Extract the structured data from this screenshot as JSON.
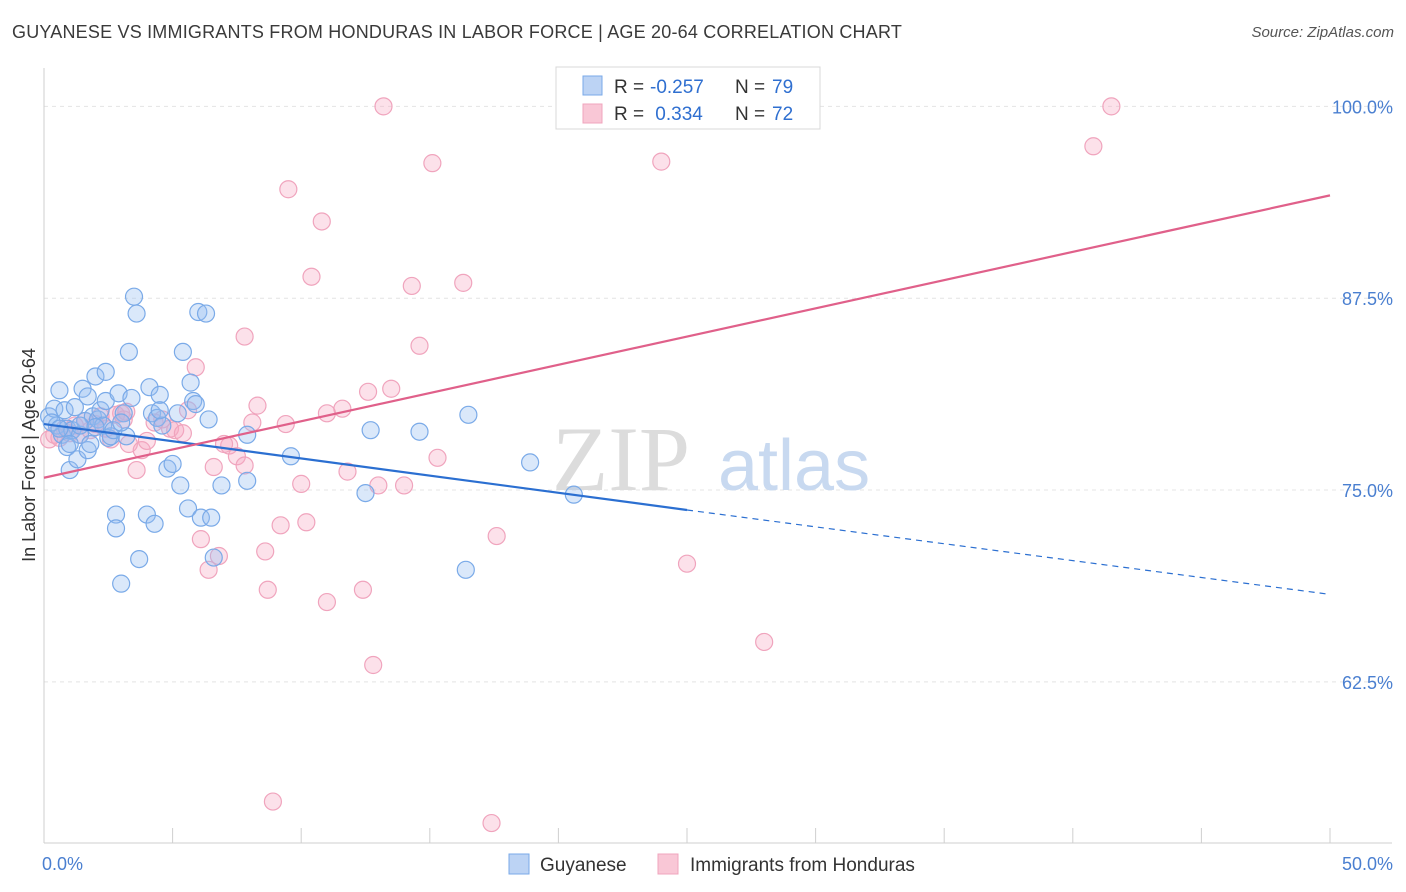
{
  "title": "GUYANESE VS IMMIGRANTS FROM HONDURAS IN LABOR FORCE | AGE 20-64 CORRELATION CHART",
  "source": "Source: ZipAtlas.com",
  "watermark": {
    "zip": "ZIP",
    "atlas": "atlas"
  },
  "chart_data": {
    "type": "scatter",
    "ylabel": "In Labor Force | Age 20-64",
    "xlim": [
      0,
      50
    ],
    "ylim": [
      52,
      102.5
    ],
    "x_tick_labels": [
      {
        "value": 0,
        "label": "0.0%"
      },
      {
        "value": 50,
        "label": "50.0%"
      }
    ],
    "y_tick_labels": [
      {
        "value": 100,
        "label": "100.0%"
      },
      {
        "value": 87.5,
        "label": "87.5%"
      },
      {
        "value": 75,
        "label": "75.0%"
      },
      {
        "value": 62.5,
        "label": "62.5%"
      }
    ],
    "legend": {
      "placement": "top-center",
      "rows": [
        {
          "r_label": "R =",
          "r_value": "-0.257",
          "n_label": "N =",
          "n_value": "79"
        },
        {
          "r_label": "R =",
          "r_value": " 0.334",
          "n_label": "N =",
          "n_value": "72"
        }
      ]
    },
    "series": [
      {
        "name": "Guyanese",
        "color": "#7aaae8",
        "line_color": "#2b6fd1",
        "trend": {
          "x0": 0,
          "y0": 79.3,
          "x1": 25,
          "y1": 73.7,
          "dash_to_x": 50,
          "dash_to_y": 68.2
        },
        "points": [
          [
            0.2,
            79.8
          ],
          [
            0.4,
            80.3
          ],
          [
            0.5,
            79.2
          ],
          [
            0.6,
            81.5
          ],
          [
            0.7,
            78.6
          ],
          [
            0.8,
            80.2
          ],
          [
            0.9,
            77.8
          ],
          [
            0.9,
            79.0
          ],
          [
            1.0,
            76.3
          ],
          [
            1.1,
            78.9
          ],
          [
            1.2,
            80.4
          ],
          [
            1.3,
            77.0
          ],
          [
            1.4,
            78.6
          ],
          [
            1.5,
            81.6
          ],
          [
            1.6,
            79.5
          ],
          [
            1.7,
            81.1
          ],
          [
            1.7,
            77.6
          ],
          [
            1.8,
            78.0
          ],
          [
            1.9,
            79.8
          ],
          [
            2.0,
            82.4
          ],
          [
            2.1,
            79.6
          ],
          [
            2.2,
            80.2
          ],
          [
            2.3,
            79.2
          ],
          [
            2.4,
            82.7
          ],
          [
            2.4,
            80.8
          ],
          [
            2.5,
            78.4
          ],
          [
            2.6,
            78.5
          ],
          [
            2.7,
            78.9
          ],
          [
            2.8,
            73.4
          ],
          [
            2.8,
            72.5
          ],
          [
            2.9,
            81.3
          ],
          [
            3.0,
            68.9
          ],
          [
            3.1,
            80.0
          ],
          [
            3.2,
            78.5
          ],
          [
            3.3,
            84.0
          ],
          [
            3.4,
            81.0
          ],
          [
            3.5,
            87.6
          ],
          [
            3.6,
            86.5
          ],
          [
            3.7,
            70.5
          ],
          [
            4.0,
            73.4
          ],
          [
            4.1,
            81.7
          ],
          [
            4.2,
            80.0
          ],
          [
            4.3,
            72.8
          ],
          [
            4.4,
            79.7
          ],
          [
            4.5,
            81.2
          ],
          [
            4.6,
            79.2
          ],
          [
            4.8,
            76.4
          ],
          [
            5.0,
            76.7
          ],
          [
            5.2,
            80.0
          ],
          [
            5.3,
            75.3
          ],
          [
            5.4,
            84.0
          ],
          [
            5.6,
            73.8
          ],
          [
            5.7,
            82.0
          ],
          [
            5.8,
            80.8
          ],
          [
            6.0,
            86.6
          ],
          [
            6.1,
            73.2
          ],
          [
            6.3,
            86.5
          ],
          [
            6.4,
            79.6
          ],
          [
            6.5,
            73.2
          ],
          [
            6.6,
            70.6
          ],
          [
            6.9,
            75.3
          ],
          [
            7.9,
            75.6
          ],
          [
            7.9,
            78.6
          ],
          [
            9.6,
            77.2
          ],
          [
            12.5,
            74.8
          ],
          [
            12.7,
            78.9
          ],
          [
            14.6,
            78.8
          ],
          [
            16.4,
            69.8
          ],
          [
            16.5,
            79.9
          ],
          [
            18.9,
            76.8
          ],
          [
            20.6,
            74.7
          ],
          [
            0.3,
            79.4
          ],
          [
            0.6,
            79.0
          ],
          [
            1.0,
            78.0
          ],
          [
            1.4,
            79.2
          ],
          [
            2.0,
            79.1
          ],
          [
            3.0,
            79.4
          ],
          [
            4.5,
            80.2
          ],
          [
            5.9,
            80.6
          ]
        ]
      },
      {
        "name": "Immigrants from Honduras",
        "color": "#f0a4bd",
        "line_color": "#e0608a",
        "trend": {
          "x0": 0,
          "y0": 75.8,
          "x1": 50,
          "y1": 94.2
        },
        "points": [
          [
            0.2,
            78.3
          ],
          [
            0.4,
            78.6
          ],
          [
            0.6,
            78.4
          ],
          [
            0.8,
            79.0
          ],
          [
            1.0,
            78.7
          ],
          [
            1.2,
            79.2
          ],
          [
            1.4,
            78.6
          ],
          [
            1.6,
            79.5
          ],
          [
            1.8,
            78.9
          ],
          [
            2.0,
            79.3
          ],
          [
            2.2,
            79.8
          ],
          [
            2.4,
            79.0
          ],
          [
            2.6,
            78.3
          ],
          [
            2.8,
            79.9
          ],
          [
            3.0,
            80.0
          ],
          [
            3.1,
            79.6
          ],
          [
            3.3,
            78.0
          ],
          [
            3.6,
            76.3
          ],
          [
            3.8,
            77.6
          ],
          [
            4.0,
            78.2
          ],
          [
            4.3,
            79.4
          ],
          [
            4.6,
            79.6
          ],
          [
            4.9,
            79.0
          ],
          [
            5.1,
            78.9
          ],
          [
            5.4,
            78.7
          ],
          [
            5.6,
            80.2
          ],
          [
            5.9,
            83.0
          ],
          [
            6.1,
            71.8
          ],
          [
            6.4,
            69.8
          ],
          [
            6.6,
            76.5
          ],
          [
            6.8,
            70.7
          ],
          [
            7.2,
            77.9
          ],
          [
            7.5,
            77.2
          ],
          [
            7.8,
            76.6
          ],
          [
            7.8,
            85.0
          ],
          [
            8.1,
            79.4
          ],
          [
            8.3,
            80.5
          ],
          [
            8.6,
            71.0
          ],
          [
            8.7,
            68.5
          ],
          [
            8.9,
            54.7
          ],
          [
            9.2,
            72.7
          ],
          [
            9.4,
            79.3
          ],
          [
            9.5,
            94.6
          ],
          [
            10.0,
            75.4
          ],
          [
            10.2,
            72.9
          ],
          [
            10.4,
            88.9
          ],
          [
            10.8,
            92.5
          ],
          [
            11.0,
            67.7
          ],
          [
            11.6,
            80.3
          ],
          [
            11.8,
            76.2
          ],
          [
            12.4,
            68.5
          ],
          [
            12.6,
            81.4
          ],
          [
            12.8,
            63.6
          ],
          [
            13.0,
            75.3
          ],
          [
            13.2,
            100.0
          ],
          [
            13.5,
            81.6
          ],
          [
            14.0,
            75.3
          ],
          [
            14.3,
            88.3
          ],
          [
            14.6,
            84.4
          ],
          [
            15.1,
            96.3
          ],
          [
            15.3,
            77.1
          ],
          [
            16.3,
            88.5
          ],
          [
            17.4,
            53.3
          ],
          [
            17.6,
            72.0
          ],
          [
            24.0,
            96.4
          ],
          [
            25.0,
            70.2
          ],
          [
            28.0,
            65.1
          ],
          [
            40.8,
            97.4
          ],
          [
            41.5,
            100.0
          ],
          [
            3.2,
            80.1
          ],
          [
            7.0,
            78.0
          ],
          [
            11.0,
            80.0
          ]
        ]
      }
    ]
  }
}
